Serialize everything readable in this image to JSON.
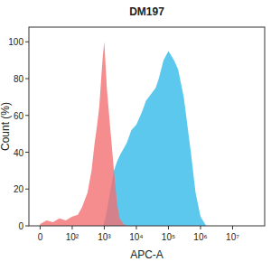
{
  "chart_data": {
    "type": "area",
    "title": "DM197",
    "x_label": "APC-A",
    "y_label": "Count (%)",
    "log": "x",
    "x": [
      0,
      20,
      40,
      60,
      80,
      100,
      150,
      200,
      300,
      400,
      500,
      600,
      700,
      800,
      900,
      1000,
      1200,
      1500,
      2000,
      2500,
      3000,
      4000,
      5000,
      7000,
      10000,
      15000,
      20000,
      30000,
      40000,
      50000,
      70000,
      100000,
      150000,
      200000,
      300000,
      500000,
      700000,
      1000000,
      1500000
    ],
    "series": [
      {
        "color": "#5cc8ee",
        "values": [
          0,
          0,
          0,
          0,
          0,
          0,
          0,
          0,
          0,
          0,
          0,
          0,
          0,
          0,
          0,
          2,
          8,
          18,
          30,
          35,
          38,
          42,
          45,
          52,
          55,
          62,
          68,
          72,
          75,
          80,
          90,
          95,
          90,
          85,
          70,
          40,
          18,
          5,
          0
        ]
      },
      {
        "color": "#f26f72",
        "values": [
          1,
          3,
          2,
          4,
          3,
          5,
          6,
          10,
          18,
          30,
          45,
          55,
          65,
          80,
          92,
          100,
          75,
          55,
          30,
          12,
          4,
          1,
          0,
          0,
          0,
          0,
          0,
          0,
          0,
          0,
          0,
          0,
          0,
          0,
          0,
          0,
          0,
          0,
          0
        ]
      }
    ],
    "xlim": [
      -35,
      100000000
    ],
    "xticks": [
      0,
      {
        "value": 100,
        "label": "10²"
      },
      {
        "value": 1000,
        "label": "10³"
      },
      {
        "value": 10000,
        "label": "10⁴"
      },
      {
        "value": 100000,
        "label": "10⁵"
      },
      {
        "value": 1000000,
        "label": "10⁶"
      },
      {
        "value": 10000000,
        "label": "10⁷"
      }
    ],
    "ylim": [
      0,
      108
    ],
    "yticks": [
      0,
      20,
      40,
      60,
      80,
      100
    ]
  }
}
